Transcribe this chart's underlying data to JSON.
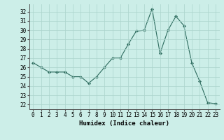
{
  "x": [
    0,
    1,
    2,
    3,
    4,
    5,
    6,
    7,
    8,
    9,
    10,
    11,
    12,
    13,
    14,
    15,
    16,
    17,
    18,
    19,
    20,
    21,
    22,
    23
  ],
  "y": [
    26.5,
    26.0,
    25.5,
    25.5,
    25.5,
    25.0,
    25.0,
    24.3,
    25.0,
    26.0,
    27.0,
    27.0,
    28.5,
    29.9,
    30.0,
    32.3,
    27.5,
    30.0,
    31.5,
    30.5,
    26.5,
    24.5,
    22.2,
    22.1
  ],
  "line_color": "#2d6b5e",
  "marker": "D",
  "marker_size": 2.0,
  "bg_color": "#cceee8",
  "grid_color": "#aad4cc",
  "xlabel": "Humidex (Indice chaleur)",
  "ylim": [
    21.5,
    32.8
  ],
  "xlim": [
    -0.5,
    23.5
  ],
  "yticks": [
    22,
    23,
    24,
    25,
    26,
    27,
    28,
    29,
    30,
    31,
    32
  ],
  "xticks": [
    0,
    1,
    2,
    3,
    4,
    5,
    6,
    7,
    8,
    9,
    10,
    11,
    12,
    13,
    14,
    15,
    16,
    17,
    18,
    19,
    20,
    21,
    22,
    23
  ],
  "tick_fontsize": 5.5,
  "label_fontsize": 6.5
}
